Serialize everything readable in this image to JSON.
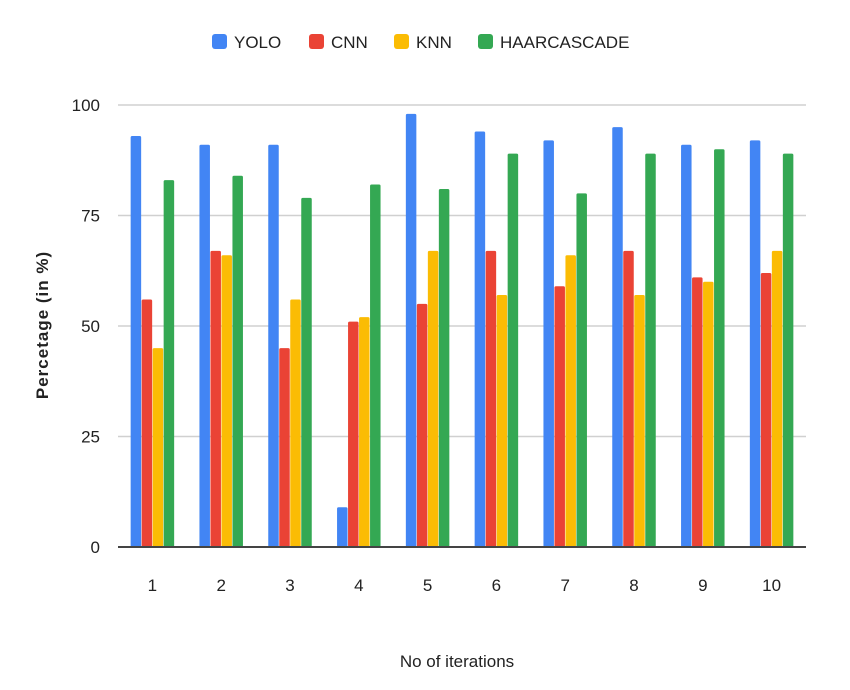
{
  "chart_data": {
    "type": "bar",
    "title": "",
    "xlabel": "No of iterations",
    "ylabel": "Percetage (in %)",
    "ylim": [
      0,
      100
    ],
    "yticks": [
      0,
      25,
      50,
      75,
      100
    ],
    "grid": true,
    "legend_position": "top",
    "categories": [
      "1",
      "2",
      "3",
      "4",
      "5",
      "6",
      "7",
      "8",
      "9",
      "10"
    ],
    "series": [
      {
        "name": "YOLO",
        "color": "#4285F4",
        "values": [
          93,
          91,
          91,
          9,
          98,
          94,
          92,
          95,
          91,
          92
        ]
      },
      {
        "name": "CNN",
        "color": "#EA4335",
        "values": [
          56,
          67,
          45,
          51,
          55,
          67,
          59,
          67,
          61,
          62
        ]
      },
      {
        "name": "KNN",
        "color": "#FBBC04",
        "values": [
          45,
          66,
          56,
          52,
          67,
          57,
          66,
          57,
          60,
          67
        ]
      },
      {
        "name": "HAARCASCADE",
        "color": "#34A853",
        "values": [
          83,
          84,
          79,
          82,
          81,
          89,
          80,
          89,
          90,
          89
        ]
      }
    ]
  }
}
